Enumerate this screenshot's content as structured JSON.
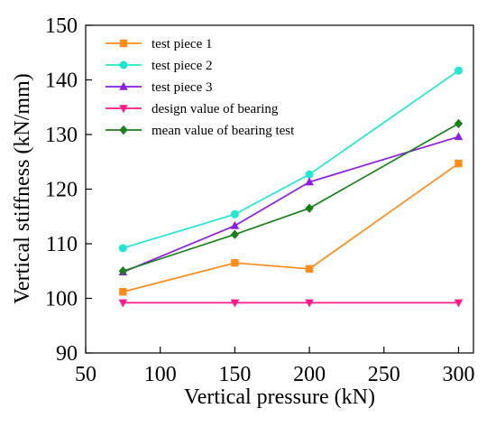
{
  "chart_data": {
    "type": "line",
    "title": "",
    "xlabel": "Vertical pressure (kN)",
    "ylabel": "Vertical stiffness (kN/mm)",
    "xlim": [
      50,
      310
    ],
    "ylim": [
      90,
      150
    ],
    "xticks": [
      50,
      100,
      150,
      200,
      250,
      300
    ],
    "yticks": [
      90,
      100,
      110,
      120,
      130,
      140,
      150
    ],
    "grid": false,
    "legend_position": "top-left",
    "x": [
      75,
      150,
      200,
      300
    ],
    "series": [
      {
        "name": "test piece 1",
        "color": "#FF8C1A",
        "marker": "square",
        "values": [
          101.2,
          106.5,
          105.4,
          124.7
        ]
      },
      {
        "name": "test piece 2",
        "color": "#22E6D2",
        "marker": "circle",
        "values": [
          109.2,
          115.4,
          122.7,
          141.7
        ]
      },
      {
        "name": "test piece 3",
        "color": "#8A1EE0",
        "marker": "triangle-up",
        "values": [
          104.8,
          113.3,
          121.3,
          129.6
        ]
      },
      {
        "name": "design value of bearing",
        "color": "#FF1A8C",
        "marker": "triangle-down",
        "values": [
          99.2,
          99.2,
          99.2,
          99.2
        ]
      },
      {
        "name": "mean value of bearing test",
        "color": "#1B7F1B",
        "marker": "diamond",
        "values": [
          105.0,
          111.7,
          116.5,
          132.0
        ]
      }
    ]
  }
}
